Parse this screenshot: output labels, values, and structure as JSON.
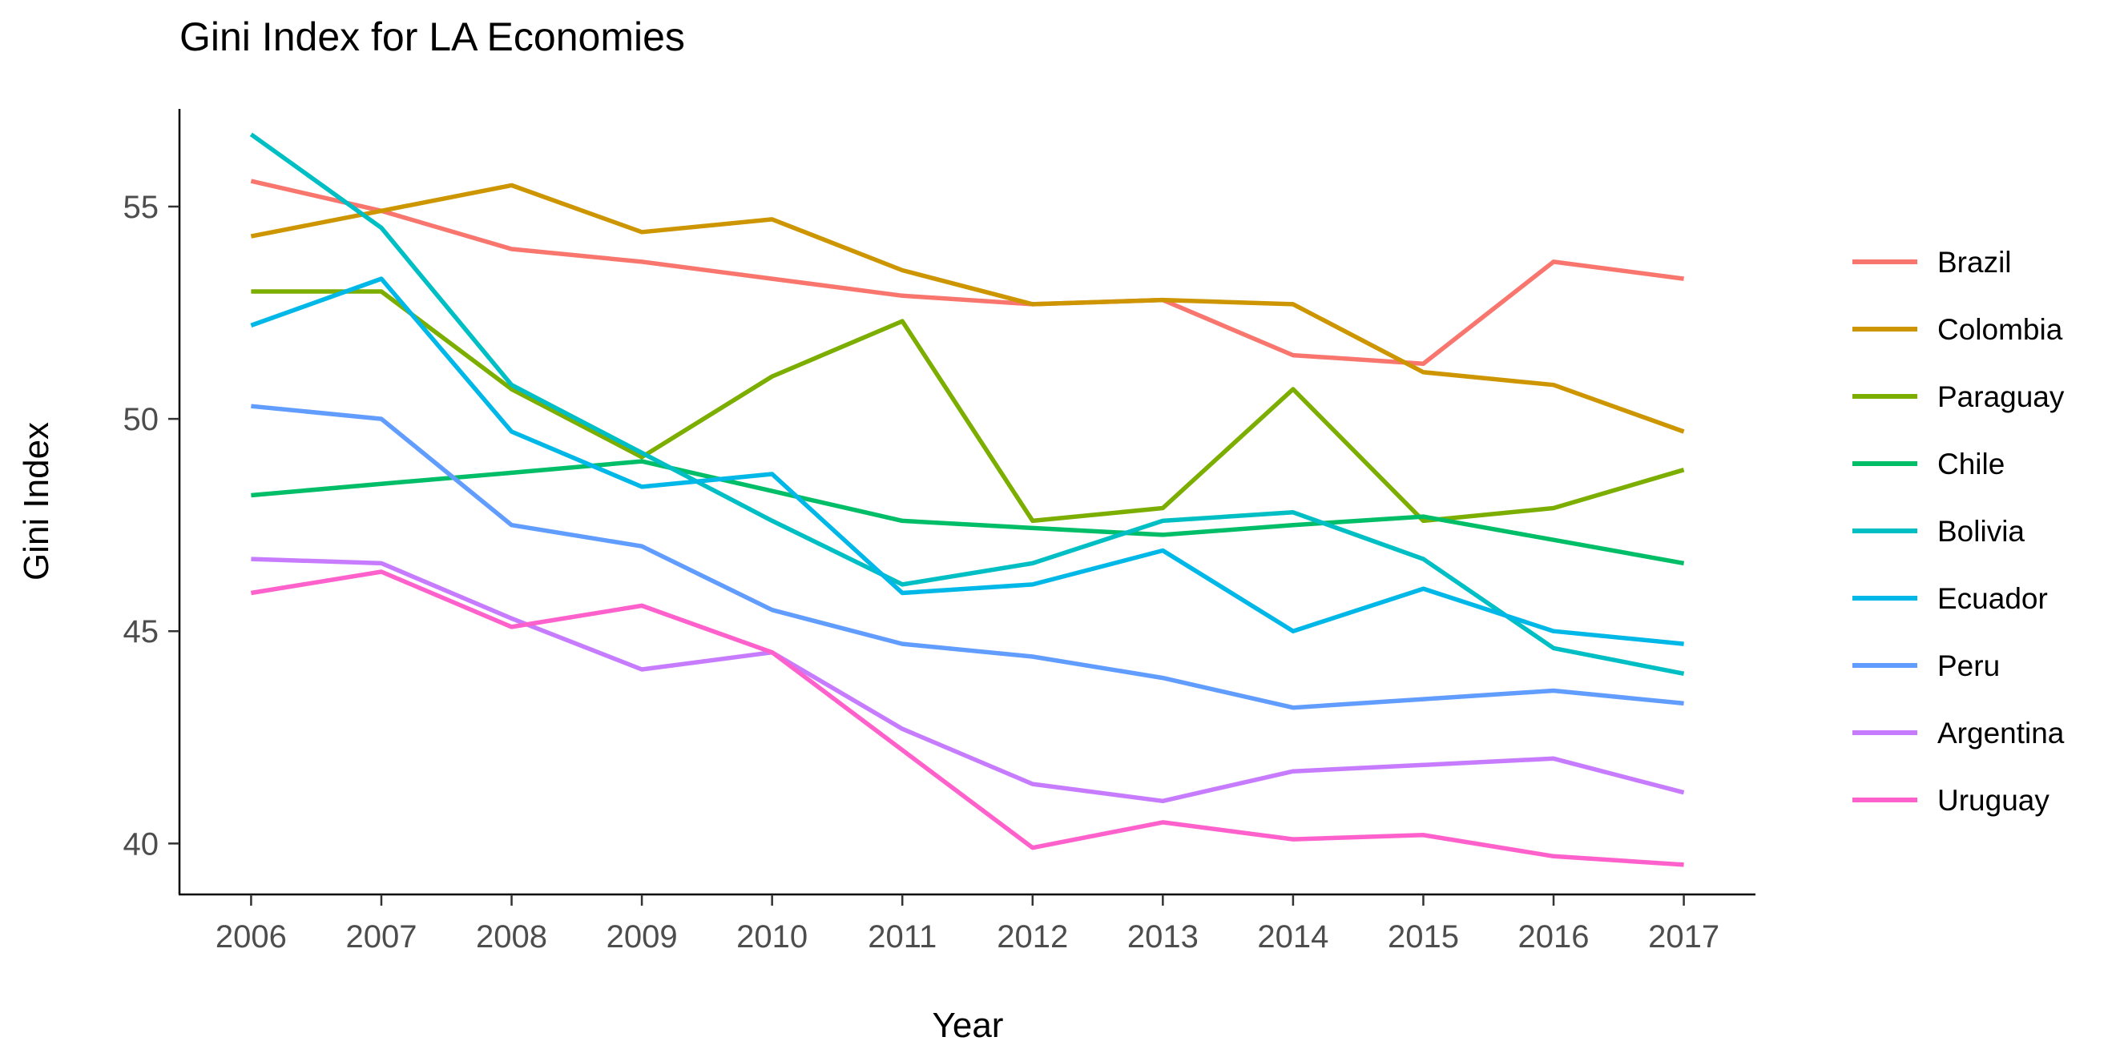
{
  "chart_data": {
    "type": "line",
    "title": "Gini Index for LA Economies",
    "xlabel": "Year",
    "ylabel": "Gini Index",
    "x": [
      2006,
      2007,
      2008,
      2009,
      2010,
      2011,
      2012,
      2013,
      2014,
      2015,
      2016,
      2017
    ],
    "xlim": [
      2005.45,
      2017.55
    ],
    "ylim": [
      38.8,
      57.3
    ],
    "yticks": [
      40,
      45,
      50,
      55
    ],
    "grid": false,
    "legend": "right",
    "series": [
      {
        "name": "Brazil",
        "color": "#F8766D",
        "values": [
          55.6,
          54.9,
          54.0,
          53.7,
          53.3,
          52.9,
          52.7,
          52.8,
          51.5,
          51.3,
          53.7,
          53.3
        ]
      },
      {
        "name": "Colombia",
        "color": "#CD9600",
        "values": [
          54.3,
          54.9,
          55.5,
          54.4,
          54.7,
          53.5,
          52.7,
          52.8,
          52.7,
          51.1,
          50.8,
          49.7
        ]
      },
      {
        "name": "Paraguay",
        "color": "#7CAE00",
        "values": [
          53.0,
          53.0,
          50.7,
          49.1,
          51.0,
          52.3,
          47.6,
          47.9,
          50.7,
          47.6,
          47.9,
          48.8
        ]
      },
      {
        "name": "Chile",
        "color": "#00BE67",
        "values": [
          48.2,
          48.47,
          48.73,
          49.0,
          48.3,
          47.6,
          47.43,
          47.27,
          47.5,
          47.7,
          47.15,
          46.6
        ]
      },
      {
        "name": "Bolivia",
        "color": "#00BFC4",
        "values": [
          56.7,
          54.5,
          50.8,
          49.2,
          47.6,
          46.1,
          46.6,
          47.6,
          47.8,
          46.7,
          44.6,
          44.0
        ]
      },
      {
        "name": "Ecuador",
        "color": "#00B8E7",
        "values": [
          52.2,
          53.3,
          49.7,
          48.4,
          48.7,
          45.9,
          46.1,
          46.9,
          45.0,
          46.0,
          45.0,
          44.7
        ]
      },
      {
        "name": "Peru",
        "color": "#619CFF",
        "values": [
          50.3,
          50.0,
          47.5,
          47.0,
          45.5,
          44.7,
          44.4,
          43.9,
          43.2,
          43.4,
          43.6,
          43.3
        ]
      },
      {
        "name": "Argentina",
        "color": "#C77CFF",
        "values": [
          46.7,
          46.6,
          45.3,
          44.1,
          44.5,
          42.7,
          41.4,
          41.0,
          41.7,
          41.85,
          42.0,
          41.2
        ]
      },
      {
        "name": "Uruguay",
        "color": "#FF61CC",
        "values": [
          45.9,
          46.4,
          45.1,
          45.6,
          44.5,
          42.2,
          39.9,
          40.5,
          40.1,
          40.2,
          39.7,
          39.5
        ]
      }
    ]
  }
}
